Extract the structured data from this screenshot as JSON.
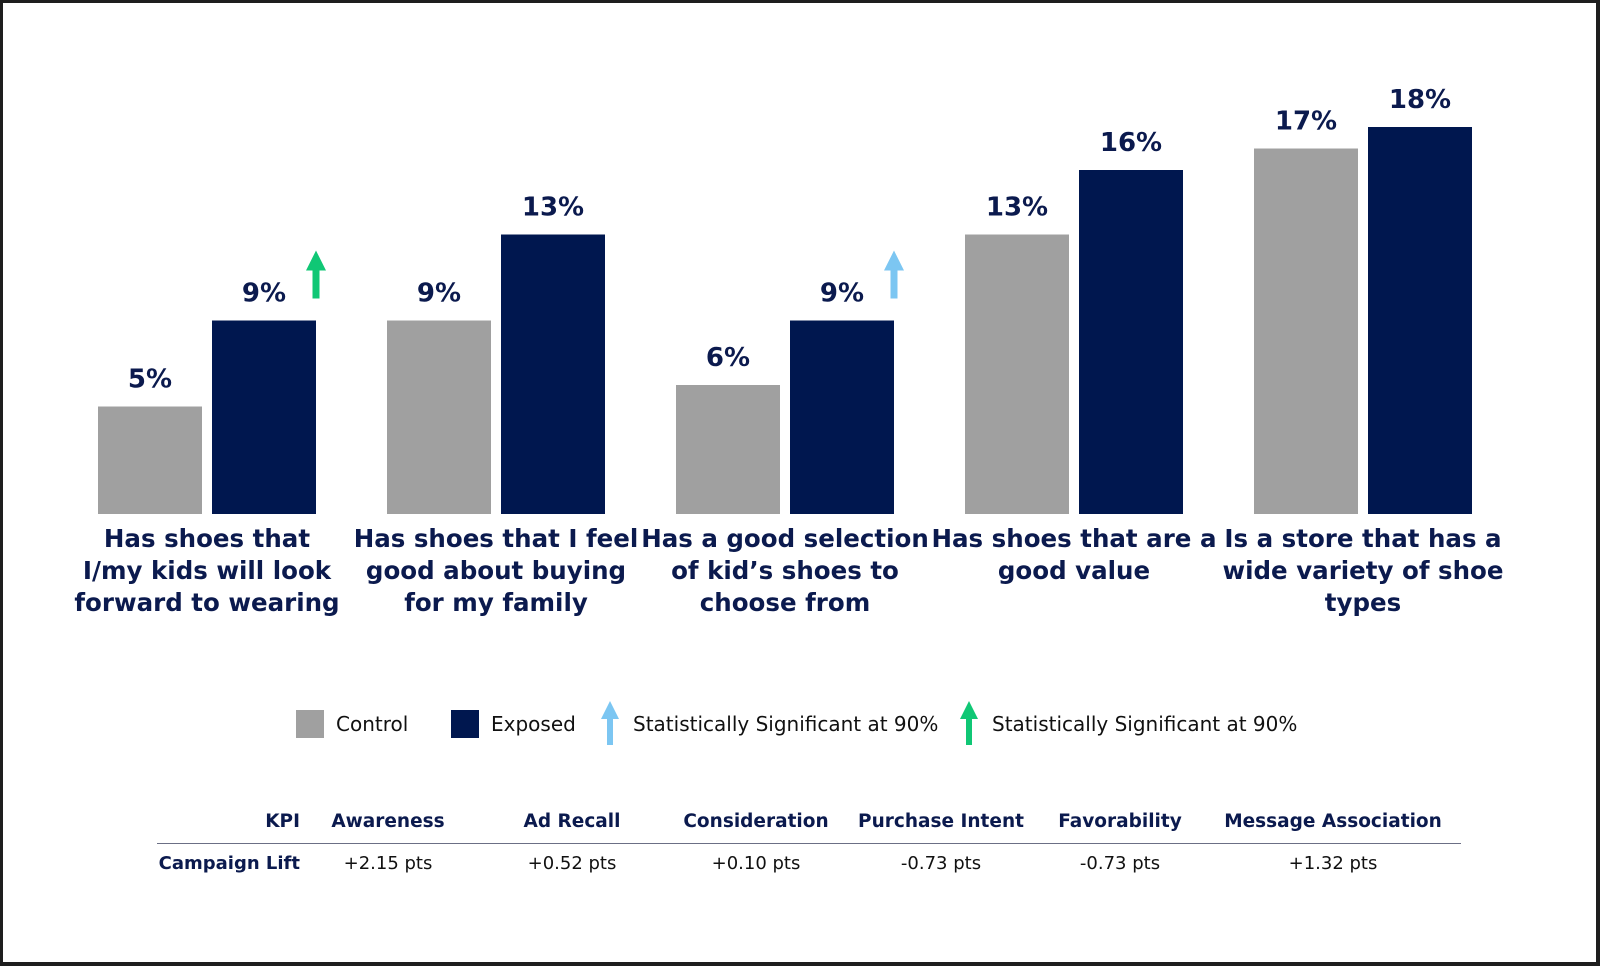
{
  "chart_data": {
    "type": "bar",
    "categories": [
      [
        "Has shoes that",
        "I/my kids will look",
        "forward to wearing"
      ],
      [
        "Has shoes that I feel",
        "good about buying",
        "for my family"
      ],
      [
        "Has a good selection",
        "of kid’s shoes to",
        "choose from"
      ],
      [
        "Has shoes that are a",
        "good value"
      ],
      [
        "Is a store that has a",
        "wide variety of shoe",
        "types"
      ]
    ],
    "series": [
      {
        "name": "Control",
        "color": "#a0a0a0",
        "values": [
          5,
          9,
          6,
          13,
          17
        ],
        "labels": [
          "5%",
          "9%",
          "6%",
          "13%",
          "17%"
        ]
      },
      {
        "name": "Exposed",
        "color": "#00174f",
        "values": [
          9,
          13,
          9,
          16,
          18
        ],
        "labels": [
          "9%",
          "13%",
          "9%",
          "16%",
          "18%"
        ]
      }
    ],
    "significance": [
      {
        "category_index": 0,
        "color": "#10c775"
      },
      {
        "category_index": 2,
        "color": "#7cc6f2"
      }
    ],
    "ylim": [
      0,
      18
    ],
    "title": "",
    "xlabel": "",
    "ylabel": ""
  },
  "legend": {
    "items": [
      {
        "label": "Control",
        "color": "#a0a0a0",
        "icon": "square-swatch"
      },
      {
        "label": "Exposed",
        "color": "#00174f",
        "icon": "square-swatch"
      },
      {
        "label": "Statistically Significant at 90%",
        "color": "#7cc6f2",
        "icon": "up-arrow-icon"
      },
      {
        "label": "Statistically Significant at 90%",
        "color": "#10c775",
        "icon": "up-arrow-icon"
      }
    ]
  },
  "kpi_table": {
    "header_label": "KPI",
    "row_label": "Campaign Lift",
    "columns": [
      "Awareness",
      "Ad Recall",
      "Consideration",
      "Purchase Intent",
      "Favorability",
      "Message Association"
    ],
    "values": [
      "+2.15 pts",
      "+0.52 pts",
      "+0.10 pts",
      "-0.73 pts",
      "-0.73 pts",
      "+1.32 pts"
    ]
  }
}
